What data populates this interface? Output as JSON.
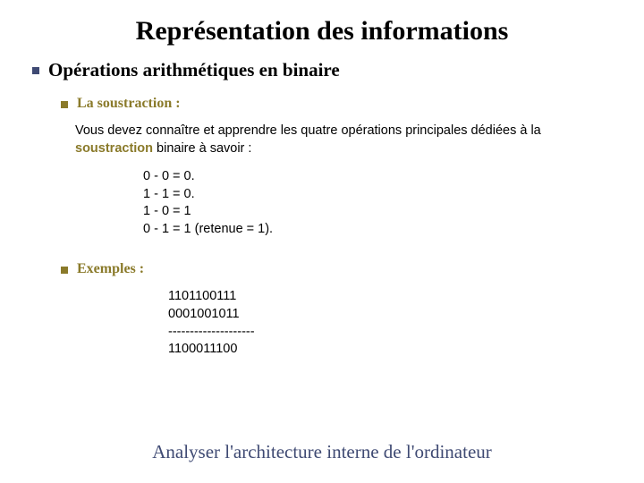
{
  "title": "Représentation des informations",
  "subtitle": "Opérations arithmétiques en binaire",
  "section1_label": "La soustraction :",
  "intro_before": "Vous devez connaître et apprendre les quatre opérations principales dédiées à la ",
  "intro_keyword": "soustraction",
  "intro_after": " binaire à savoir :",
  "rule1": "0 -  0 = 0.",
  "rule2": "1 -  1 = 0.",
  "rule3": "1 -  0 = 1",
  "rule4": "0 -  1 = 1 (retenue = 1).",
  "section2_label": "Exemples :",
  "ex_line1": "1101100111",
  "ex_line2": "0001001011",
  "ex_line3": "--------------------",
  "ex_line4": "1100011100",
  "footer": "Analyser l'architecture interne de l'ordinateur",
  "colors": {
    "bullet_navy": "#3f4a73",
    "bullet_olive": "#8a7a2a",
    "olive_text": "#8a7a2a",
    "footer_text": "#3f4a73",
    "background": "#ffffff"
  },
  "fonts": {
    "title_size": 30,
    "subtitle_size": 21,
    "section_size": 16,
    "body_size": 14.5,
    "footer_size": 21
  }
}
